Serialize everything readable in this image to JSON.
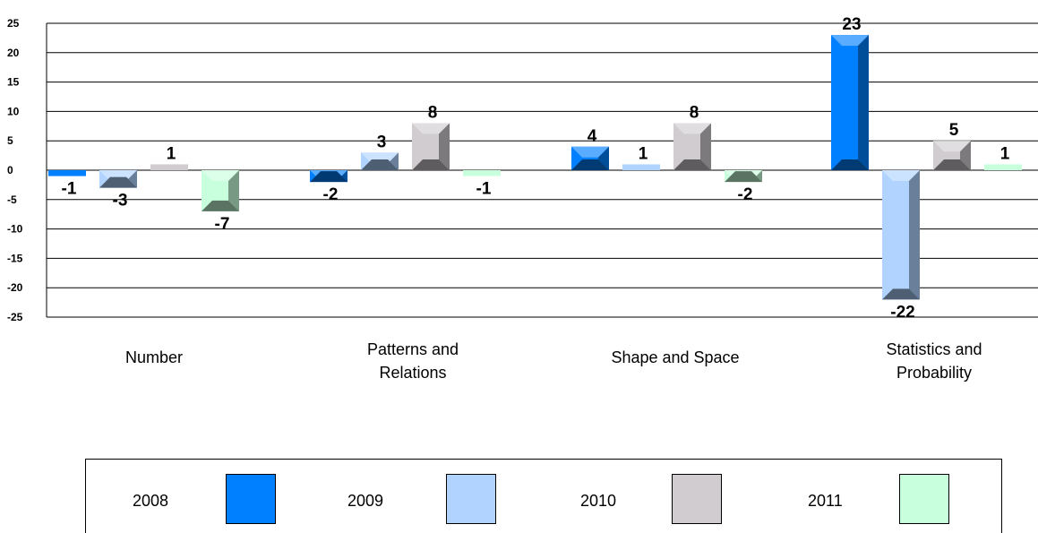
{
  "chart_data": {
    "type": "bar",
    "categories": [
      "Number",
      "Patterns and Relations",
      "Shape and Space",
      "Statistics and Probability"
    ],
    "category_lines": [
      [
        "Number"
      ],
      [
        "Patterns and",
        "Relations"
      ],
      [
        "Shape and Space"
      ],
      [
        "Statistics and",
        "Probability"
      ]
    ],
    "series": [
      {
        "name": "2008",
        "values": [
          -1,
          -2,
          4,
          23
        ],
        "labels": [
          "-1",
          "-2",
          "4",
          "23"
        ],
        "color": "#0080ff"
      },
      {
        "name": "2009",
        "values": [
          -3,
          3,
          1,
          -22
        ],
        "labels": [
          "-3",
          "3",
          "1",
          "-22"
        ],
        "color": "#b0d4ff"
      },
      {
        "name": "2010",
        "values": [
          1,
          8,
          8,
          5
        ],
        "labels": [
          "1",
          "8",
          "8",
          "5"
        ],
        "color": "#d0ccd0"
      },
      {
        "name": "2011",
        "values": [
          -7,
          -1,
          -2,
          1
        ],
        "labels": [
          "-7",
          "-1",
          "-2",
          "1"
        ],
        "color": "#c8ffdc"
      }
    ],
    "ylim": [
      -25,
      25
    ],
    "yticks": [
      25,
      20,
      15,
      10,
      5,
      0,
      -5,
      -10,
      -15,
      -20,
      -25
    ],
    "ytick_labels": [
      "25",
      "20",
      "15",
      "10",
      "5",
      "0",
      "-5",
      "-10",
      "-15",
      "-20",
      "-25"
    ],
    "grid": true,
    "legend_position": "bottom",
    "style": "3d-bar"
  },
  "legend": {
    "items": [
      {
        "label": "2008",
        "color": "#0080ff"
      },
      {
        "label": "2009",
        "color": "#b0d4ff"
      },
      {
        "label": "2010",
        "color": "#d0ccd0"
      },
      {
        "label": "2011",
        "color": "#c8ffdc"
      }
    ]
  }
}
